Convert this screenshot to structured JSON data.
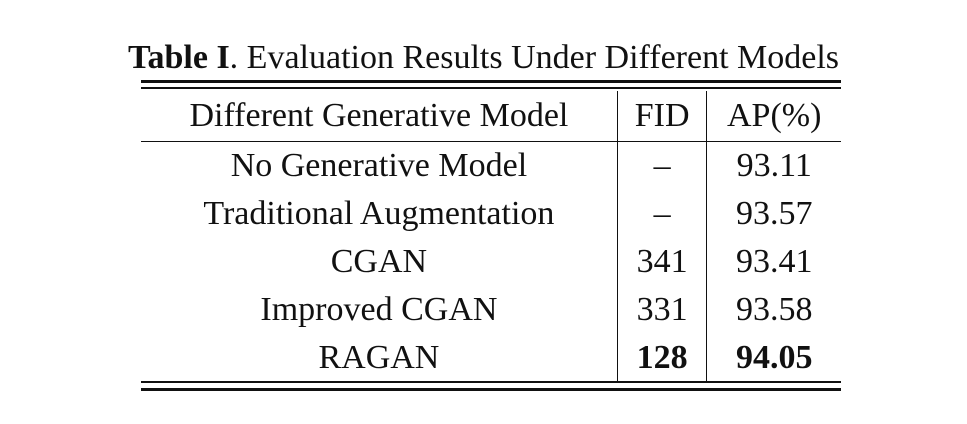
{
  "caption": {
    "label": "Table I",
    "text": ". Evaluation Results Under Different Models"
  },
  "table": {
    "headers": [
      "Different Generative Model",
      "FID",
      "AP(%)"
    ],
    "rows": [
      {
        "model": "No Generative Model",
        "fid": "–",
        "ap": "93.11"
      },
      {
        "model": "Traditional Augmentation",
        "fid": "–",
        "ap": "93.57"
      },
      {
        "model": "CGAN",
        "fid": "341",
        "ap": "93.41"
      },
      {
        "model": "Improved CGAN",
        "fid": "331",
        "ap": "93.58"
      },
      {
        "model": "RAGAN",
        "fid": "128",
        "ap": "94.05",
        "bold": true
      }
    ]
  }
}
